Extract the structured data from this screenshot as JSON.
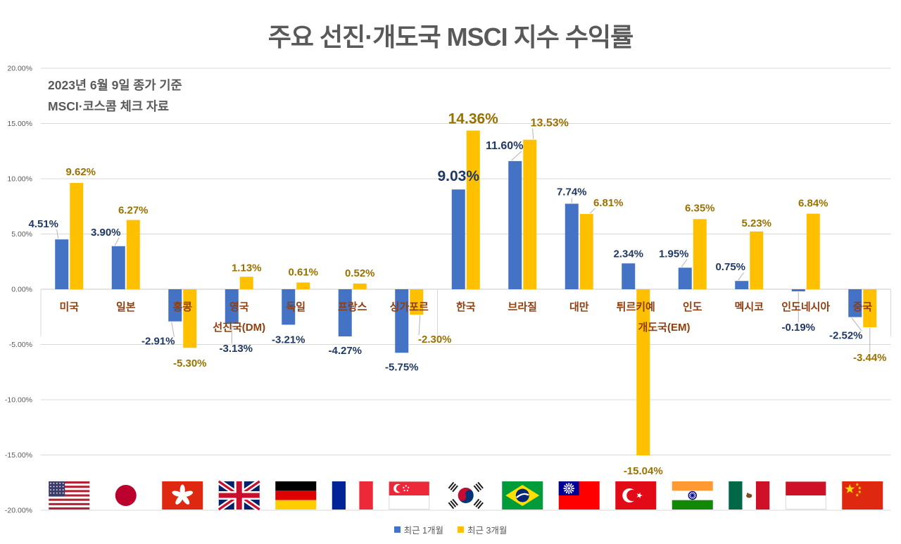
{
  "chart_data": {
    "type": "bar",
    "title": "주요 선진·개도국 MSCI 지수 수익률",
    "note_lines": [
      "2023년 6월 9일 종가 기준",
      "MSCI·코스콤 체크 자료"
    ],
    "axis": {
      "ymin": -20,
      "ymax": 20,
      "tick_step": 5,
      "tick_format": "0.00%",
      "tick_labels": [
        "-20.00%",
        "-15.00%",
        "-10.00%",
        "-5.00%",
        "0.00%",
        "5.00%",
        "10.00%",
        "15.00%",
        "20.00%"
      ],
      "grid": true
    },
    "categories": [
      "미국",
      "일본",
      "홍콩",
      "영국",
      "독일",
      "프랑스",
      "싱가포르",
      "한국",
      "브라질",
      "대만",
      "튀르키예",
      "인도",
      "멕시코",
      "인도네시아",
      "중국"
    ],
    "category_groups": [
      {
        "label": "선진국(DM)",
        "from": 0,
        "to": 6
      },
      {
        "label": "개도국(EM)",
        "from": 7,
        "to": 14
      }
    ],
    "flags": [
      "us",
      "jp",
      "hk",
      "gb",
      "de",
      "fr",
      "sg",
      "kr",
      "br",
      "tw",
      "tr",
      "in",
      "mx",
      "id",
      "cn"
    ],
    "series": [
      {
        "name": "최근 1개월",
        "color": "#4472C4",
        "label_color": "#1F3864",
        "values": [
          4.51,
          3.9,
          -2.91,
          -3.13,
          -3.21,
          -4.27,
          -5.75,
          9.03,
          11.6,
          7.74,
          2.34,
          1.95,
          0.75,
          -0.19,
          -2.52
        ]
      },
      {
        "name": "최근 3개월",
        "color": "#FFC000",
        "label_color": "#9A7100",
        "values": [
          9.62,
          6.27,
          -5.3,
          1.13,
          0.61,
          0.52,
          -2.3,
          14.36,
          13.53,
          6.81,
          -15.04,
          6.35,
          5.23,
          6.84,
          -3.44
        ]
      }
    ],
    "emphasized_category": "한국",
    "legend_position": "bottom-center",
    "style": {
      "grid_color": "#D9D9D9",
      "axis_text_color": "#595959",
      "category_text_color": "#8F3E0F",
      "title_color": "#595959",
      "leader_line_color": "#B3B3B3"
    }
  }
}
